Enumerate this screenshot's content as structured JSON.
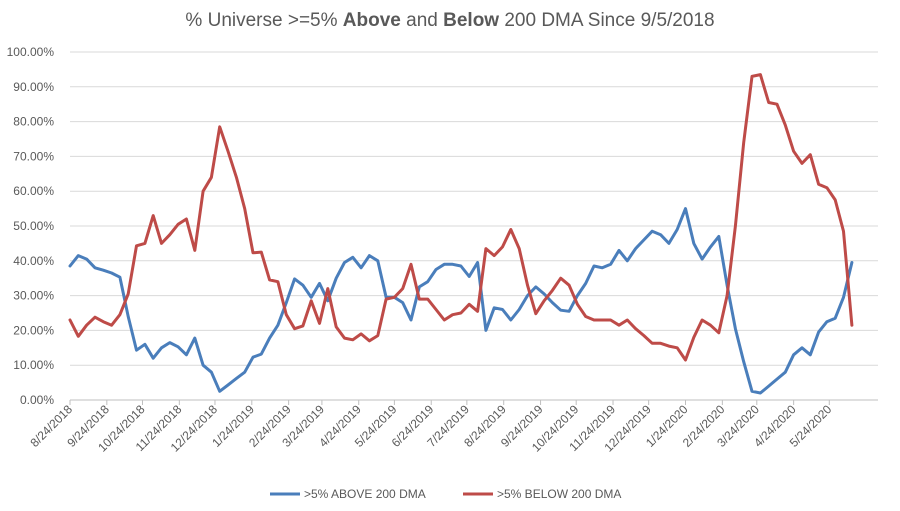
{
  "chart_data": {
    "type": "line",
    "title": {
      "part1": "% Universe >=5% ",
      "bold1": "Above",
      "part2": " and ",
      "bold2": "Below",
      "part3": " 200 DMA Since 9/5/2018"
    },
    "xlabel": "",
    "ylabel": "",
    "ylim": [
      0,
      100
    ],
    "y_ticks": [
      "0.00%",
      "10.00%",
      "20.00%",
      "30.00%",
      "40.00%",
      "50.00%",
      "60.00%",
      "70.00%",
      "80.00%",
      "90.00%",
      "100.00%"
    ],
    "x_tick_labels": [
      "8/24/2018",
      "9/24/2018",
      "10/24/2018",
      "11/24/2018",
      "12/24/2018",
      "1/24/2019",
      "2/24/2019",
      "3/24/2019",
      "4/24/2019",
      "5/24/2019",
      "6/24/2019",
      "7/24/2019",
      "8/24/2019",
      "9/24/2019",
      "10/24/2019",
      "11/24/2019",
      "12/24/2019",
      "1/24/2020",
      "2/24/2020",
      "3/24/2020",
      "4/24/2020",
      "5/24/2020"
    ],
    "x_range": [
      "2018-08-24",
      "2020-07-04"
    ],
    "grid": true,
    "legend_position": "bottom",
    "series": [
      {
        "name": ">5% ABOVE 200 DMA",
        "color": "#4a7ebb",
        "points": [
          [
            "2018-08-24",
            38.5
          ],
          [
            "2018-08-31",
            41.5
          ],
          [
            "2018-09-07",
            40.5
          ],
          [
            "2018-09-14",
            38.0
          ],
          [
            "2018-09-21",
            37.3
          ],
          [
            "2018-09-28",
            36.5
          ],
          [
            "2018-10-05",
            35.3
          ],
          [
            "2018-10-12",
            24.0
          ],
          [
            "2018-10-19",
            14.3
          ],
          [
            "2018-10-26",
            16.0
          ],
          [
            "2018-11-02",
            12.0
          ],
          [
            "2018-11-09",
            15.0
          ],
          [
            "2018-11-16",
            16.5
          ],
          [
            "2018-11-23",
            15.3
          ],
          [
            "2018-11-30",
            13.0
          ],
          [
            "2018-12-07",
            17.8
          ],
          [
            "2018-12-14",
            10.0
          ],
          [
            "2018-12-21",
            8.0
          ],
          [
            "2018-12-28",
            2.5
          ],
          [
            "2019-01-04",
            4.3
          ],
          [
            "2019-01-11",
            6.2
          ],
          [
            "2019-01-18",
            8.0
          ],
          [
            "2019-01-25",
            12.3
          ],
          [
            "2019-02-01",
            13.2
          ],
          [
            "2019-02-08",
            17.8
          ],
          [
            "2019-02-15",
            21.5
          ],
          [
            "2019-02-22",
            28.0
          ],
          [
            "2019-03-01",
            34.8
          ],
          [
            "2019-03-08",
            33.0
          ],
          [
            "2019-03-15",
            29.5
          ],
          [
            "2019-03-22",
            33.5
          ],
          [
            "2019-03-29",
            28.5
          ],
          [
            "2019-04-05",
            35.0
          ],
          [
            "2019-04-12",
            39.5
          ],
          [
            "2019-04-19",
            41.0
          ],
          [
            "2019-04-26",
            38.0
          ],
          [
            "2019-05-03",
            41.5
          ],
          [
            "2019-05-10",
            40.0
          ],
          [
            "2019-05-17",
            29.5
          ],
          [
            "2019-05-24",
            29.5
          ],
          [
            "2019-05-31",
            28.0
          ],
          [
            "2019-06-07",
            23.0
          ],
          [
            "2019-06-14",
            32.5
          ],
          [
            "2019-06-21",
            34.0
          ],
          [
            "2019-06-28",
            37.5
          ],
          [
            "2019-07-05",
            39.0
          ],
          [
            "2019-07-12",
            39.0
          ],
          [
            "2019-07-19",
            38.5
          ],
          [
            "2019-07-26",
            35.5
          ],
          [
            "2019-08-02",
            39.5
          ],
          [
            "2019-08-09",
            20.0
          ],
          [
            "2019-08-16",
            26.5
          ],
          [
            "2019-08-23",
            26.0
          ],
          [
            "2019-08-30",
            23.0
          ],
          [
            "2019-09-06",
            26.0
          ],
          [
            "2019-09-13",
            30.0
          ],
          [
            "2019-09-20",
            32.5
          ],
          [
            "2019-09-27",
            30.5
          ],
          [
            "2019-10-04",
            28.0
          ],
          [
            "2019-10-11",
            25.8
          ],
          [
            "2019-10-18",
            25.5
          ],
          [
            "2019-10-25",
            30.0
          ],
          [
            "2019-11-01",
            33.5
          ],
          [
            "2019-11-08",
            38.5
          ],
          [
            "2019-11-15",
            38.0
          ],
          [
            "2019-11-22",
            39.0
          ],
          [
            "2019-11-29",
            43.0
          ],
          [
            "2019-12-06",
            40.0
          ],
          [
            "2019-12-13",
            43.5
          ],
          [
            "2019-12-20",
            46.0
          ],
          [
            "2019-12-27",
            48.5
          ],
          [
            "2020-01-03",
            47.5
          ],
          [
            "2020-01-10",
            45.0
          ],
          [
            "2020-01-17",
            49.0
          ],
          [
            "2020-01-24",
            55.0
          ],
          [
            "2020-01-31",
            45.0
          ],
          [
            "2020-02-07",
            40.5
          ],
          [
            "2020-02-14",
            44.0
          ],
          [
            "2020-02-21",
            47.0
          ],
          [
            "2020-02-28",
            33.0
          ],
          [
            "2020-03-06",
            20.5
          ],
          [
            "2020-03-13",
            11.0
          ],
          [
            "2020-03-20",
            2.5
          ],
          [
            "2020-03-27",
            2.0
          ],
          [
            "2020-04-03",
            4.0
          ],
          [
            "2020-04-10",
            6.0
          ],
          [
            "2020-04-17",
            8.0
          ],
          [
            "2020-04-24",
            13.0
          ],
          [
            "2020-05-01",
            15.0
          ],
          [
            "2020-05-08",
            13.0
          ],
          [
            "2020-05-15",
            19.5
          ],
          [
            "2020-05-22",
            22.5
          ],
          [
            "2020-05-29",
            23.5
          ],
          [
            "2020-06-05",
            29.5
          ],
          [
            "2020-06-12",
            39.5
          ]
        ]
      },
      {
        "name": ">5% BELOW 200 DMA",
        "color": "#be4b48",
        "points": [
          [
            "2018-08-24",
            23.0
          ],
          [
            "2018-08-31",
            18.3
          ],
          [
            "2018-09-07",
            21.5
          ],
          [
            "2018-09-14",
            23.8
          ],
          [
            "2018-09-21",
            22.5
          ],
          [
            "2018-09-28",
            21.5
          ],
          [
            "2018-10-05",
            24.5
          ],
          [
            "2018-10-12",
            30.5
          ],
          [
            "2018-10-19",
            44.3
          ],
          [
            "2018-10-26",
            45.0
          ],
          [
            "2018-11-02",
            53.0
          ],
          [
            "2018-11-09",
            45.0
          ],
          [
            "2018-11-16",
            47.5
          ],
          [
            "2018-11-23",
            50.5
          ],
          [
            "2018-11-30",
            52.0
          ],
          [
            "2018-12-07",
            43.0
          ],
          [
            "2018-12-14",
            60.0
          ],
          [
            "2018-12-21",
            64.0
          ],
          [
            "2018-12-28",
            78.5
          ],
          [
            "2019-01-04",
            71.5
          ],
          [
            "2019-01-11",
            64.0
          ],
          [
            "2019-01-18",
            55.0
          ],
          [
            "2019-01-25",
            42.3
          ],
          [
            "2019-02-01",
            42.5
          ],
          [
            "2019-02-08",
            34.5
          ],
          [
            "2019-02-15",
            34.0
          ],
          [
            "2019-02-22",
            24.5
          ],
          [
            "2019-03-01",
            20.5
          ],
          [
            "2019-03-08",
            21.3
          ],
          [
            "2019-03-15",
            28.5
          ],
          [
            "2019-03-22",
            22.0
          ],
          [
            "2019-03-29",
            32.0
          ],
          [
            "2019-04-05",
            21.0
          ],
          [
            "2019-04-12",
            17.8
          ],
          [
            "2019-04-19",
            17.3
          ],
          [
            "2019-04-26",
            19.0
          ],
          [
            "2019-05-03",
            17.0
          ],
          [
            "2019-05-10",
            18.5
          ],
          [
            "2019-05-17",
            29.0
          ],
          [
            "2019-05-24",
            29.5
          ],
          [
            "2019-05-31",
            32.0
          ],
          [
            "2019-06-07",
            39.0
          ],
          [
            "2019-06-14",
            29.0
          ],
          [
            "2019-06-21",
            29.0
          ],
          [
            "2019-06-28",
            26.0
          ],
          [
            "2019-07-05",
            23.0
          ],
          [
            "2019-07-12",
            24.5
          ],
          [
            "2019-07-19",
            25.0
          ],
          [
            "2019-07-26",
            27.5
          ],
          [
            "2019-08-02",
            25.5
          ],
          [
            "2019-08-09",
            43.5
          ],
          [
            "2019-08-16",
            41.5
          ],
          [
            "2019-08-23",
            44.0
          ],
          [
            "2019-08-30",
            49.0
          ],
          [
            "2019-09-06",
            43.5
          ],
          [
            "2019-09-13",
            33.0
          ],
          [
            "2019-09-20",
            24.8
          ],
          [
            "2019-09-27",
            28.5
          ],
          [
            "2019-10-04",
            31.5
          ],
          [
            "2019-10-11",
            35.0
          ],
          [
            "2019-10-18",
            33.0
          ],
          [
            "2019-10-25",
            27.5
          ],
          [
            "2019-11-01",
            24.0
          ],
          [
            "2019-11-08",
            23.0
          ],
          [
            "2019-11-15",
            23.0
          ],
          [
            "2019-11-22",
            23.0
          ],
          [
            "2019-11-29",
            21.5
          ],
          [
            "2019-12-06",
            23.0
          ],
          [
            "2019-12-13",
            20.5
          ],
          [
            "2019-12-20",
            18.5
          ],
          [
            "2019-12-27",
            16.3
          ],
          [
            "2020-01-03",
            16.3
          ],
          [
            "2020-01-10",
            15.5
          ],
          [
            "2020-01-17",
            15.0
          ],
          [
            "2020-01-24",
            11.5
          ],
          [
            "2020-01-31",
            18.0
          ],
          [
            "2020-02-07",
            23.0
          ],
          [
            "2020-02-14",
            21.5
          ],
          [
            "2020-02-21",
            19.3
          ],
          [
            "2020-02-28",
            30.0
          ],
          [
            "2020-03-06",
            50.0
          ],
          [
            "2020-03-13",
            74.0
          ],
          [
            "2020-03-20",
            93.0
          ],
          [
            "2020-03-27",
            93.5
          ],
          [
            "2020-04-03",
            85.5
          ],
          [
            "2020-04-10",
            85.0
          ],
          [
            "2020-04-17",
            79.0
          ],
          [
            "2020-04-24",
            71.5
          ],
          [
            "2020-05-01",
            68.0
          ],
          [
            "2020-05-08",
            70.5
          ],
          [
            "2020-05-15",
            62.0
          ],
          [
            "2020-05-22",
            61.0
          ],
          [
            "2020-05-29",
            57.5
          ],
          [
            "2020-06-05",
            48.5
          ],
          [
            "2020-06-12",
            21.5
          ]
        ]
      }
    ]
  }
}
